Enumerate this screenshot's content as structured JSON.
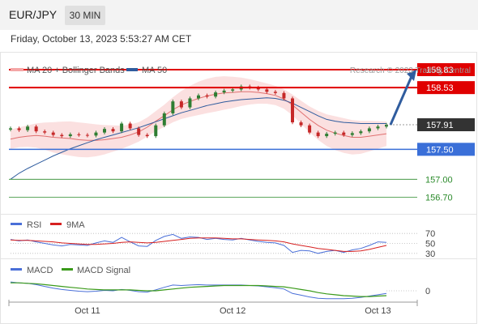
{
  "header": {
    "pair": "EUR/JPY",
    "timeframe": "30 MIN"
  },
  "timestamp": "Friday, October 13, 2023 5:53:27 AM CET",
  "copyright": "Research © 2023 Trading Central",
  "colors": {
    "price_up": "#2e7d32",
    "price_down": "#c62828",
    "bollinger": "#f4a6a6",
    "ma50": "#2f5c9e",
    "resistance": "#e00000",
    "support": "#3a6fd8",
    "target": "#2a8a2a",
    "last": "#333333",
    "arrow": "#2f5c9e"
  },
  "chart_data": [
    {
      "type": "line",
      "panel": "price",
      "legend": [
        "MA 20 + Bollinger Bands",
        "MA 50"
      ],
      "ylim": [
        156.45,
        159.1
      ],
      "x_ticks": [
        "Oct 11",
        "Oct 12",
        "Oct 13"
      ],
      "levels": [
        {
          "value": "158.83",
          "kind": "resistance"
        },
        {
          "value": "158.53",
          "kind": "resistance"
        },
        {
          "value": "157.91",
          "kind": "last"
        },
        {
          "value": "157.50",
          "kind": "support"
        },
        {
          "value": "157.00",
          "kind": "target"
        },
        {
          "value": "156.70",
          "kind": "target"
        }
      ],
      "series": [
        {
          "name": "MA 20 + Bollinger Bands",
          "values": [
            157.67,
            157.7,
            157.72,
            157.73,
            157.72,
            157.7,
            157.69,
            157.68,
            157.66,
            157.65,
            157.65,
            157.66,
            157.68,
            157.7,
            157.74,
            157.79,
            157.87,
            157.97,
            158.06,
            158.16,
            158.24,
            158.3,
            158.35,
            158.39,
            158.42,
            158.44,
            158.45,
            158.46,
            158.46,
            158.45,
            158.43,
            158.4,
            158.34,
            158.24,
            158.12,
            158.0,
            157.9,
            157.82,
            157.77,
            157.73,
            157.7,
            157.7,
            157.72,
            157.74,
            157.76
          ]
        },
        {
          "name": "MA 50",
          "values": [
            157.0,
            157.1,
            157.18,
            157.25,
            157.32,
            157.39,
            157.45,
            157.51,
            157.56,
            157.61,
            157.66,
            157.7,
            157.74,
            157.78,
            157.82,
            157.86,
            157.91,
            157.96,
            158.01,
            158.06,
            158.11,
            158.15,
            158.19,
            158.23,
            158.26,
            158.29,
            158.31,
            158.33,
            158.34,
            158.35,
            158.36,
            158.35,
            158.32,
            158.27,
            158.2,
            158.13,
            158.06,
            158.0,
            157.97,
            157.95,
            157.94,
            157.93,
            157.93,
            157.93,
            157.93
          ]
        },
        {
          "name": "Price",
          "values": [
            157.85,
            157.82,
            157.88,
            157.8,
            157.78,
            157.74,
            157.72,
            157.75,
            157.74,
            157.73,
            157.78,
            157.84,
            157.8,
            157.93,
            157.85,
            157.74,
            157.72,
            157.9,
            158.1,
            158.3,
            158.2,
            158.35,
            158.4,
            158.38,
            158.45,
            158.48,
            158.5,
            158.55,
            158.53,
            158.5,
            158.46,
            158.44,
            158.35,
            157.95,
            157.9,
            157.78,
            157.72,
            157.76,
            157.78,
            157.74,
            157.77,
            157.8,
            157.85,
            157.88,
            157.91
          ]
        }
      ]
    },
    {
      "type": "line",
      "panel": "rsi",
      "legend": [
        "RSI",
        "9MA"
      ],
      "levels": [
        "70",
        "50",
        "30"
      ],
      "ylim": [
        20,
        80
      ],
      "series": [
        {
          "name": "RSI",
          "values": [
            58,
            55,
            57,
            53,
            50,
            47,
            45,
            48,
            47,
            46,
            51,
            55,
            52,
            62,
            53,
            45,
            44,
            56,
            64,
            68,
            60,
            63,
            62,
            58,
            60,
            58,
            57,
            60,
            57,
            54,
            52,
            51,
            46,
            32,
            36,
            35,
            30,
            34,
            36,
            32,
            37,
            40,
            46,
            53,
            52
          ]
        },
        {
          "name": "9MA",
          "values": [
            57,
            56,
            56,
            55,
            54,
            53,
            51,
            50,
            49,
            48,
            48,
            49,
            50,
            52,
            53,
            52,
            51,
            52,
            54,
            56,
            58,
            60,
            61,
            61,
            61,
            60,
            59,
            59,
            58,
            57,
            56,
            55,
            53,
            49,
            46,
            43,
            40,
            38,
            36,
            34,
            34,
            35,
            38,
            42,
            46
          ]
        }
      ]
    },
    {
      "type": "line",
      "panel": "macd",
      "legend": [
        "MACD",
        "MACD Signal"
      ],
      "levels": [
        "0"
      ],
      "ylim": [
        -0.35,
        0.35
      ],
      "series": [
        {
          "name": "MACD",
          "values": [
            0.2,
            0.18,
            0.17,
            0.14,
            0.1,
            0.06,
            0.03,
            0.01,
            -0.01,
            -0.02,
            -0.01,
            0.01,
            0.0,
            0.03,
            0.01,
            -0.02,
            -0.03,
            0.02,
            0.08,
            0.13,
            0.12,
            0.13,
            0.14,
            0.13,
            0.13,
            0.13,
            0.13,
            0.13,
            0.12,
            0.11,
            0.09,
            0.07,
            0.04,
            -0.06,
            -0.1,
            -0.14,
            -0.17,
            -0.18,
            -0.18,
            -0.18,
            -0.17,
            -0.15,
            -0.12,
            -0.09,
            -0.06
          ]
        },
        {
          "name": "MACD Signal",
          "values": [
            0.18,
            0.18,
            0.17,
            0.16,
            0.14,
            0.12,
            0.1,
            0.08,
            0.06,
            0.04,
            0.03,
            0.02,
            0.02,
            0.02,
            0.02,
            0.01,
            0.0,
            0.0,
            0.02,
            0.04,
            0.06,
            0.08,
            0.09,
            0.1,
            0.11,
            0.12,
            0.12,
            0.12,
            0.12,
            0.12,
            0.11,
            0.1,
            0.09,
            0.06,
            0.03,
            0.0,
            -0.04,
            -0.07,
            -0.09,
            -0.11,
            -0.12,
            -0.13,
            -0.13,
            -0.12,
            -0.11
          ]
        }
      ]
    }
  ]
}
